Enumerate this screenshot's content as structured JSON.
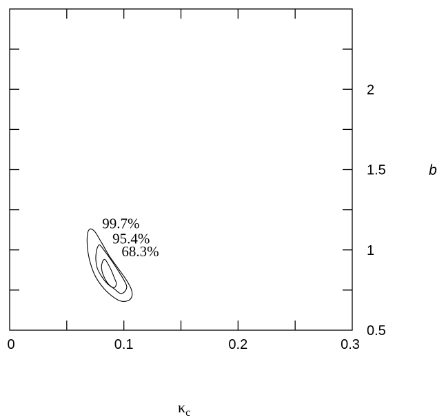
{
  "chart_data": {
    "type": "contour",
    "xlabel": "κ",
    "xlabel_subscript": "c",
    "ylabel": "b",
    "xlim": [
      0,
      0.3
    ],
    "ylim": [
      0.5,
      2.5
    ],
    "x_ticks": [
      {
        "value": 0,
        "label": "0"
      },
      {
        "value": 0.1,
        "label": "0.1"
      },
      {
        "value": 0.2,
        "label": "0.2"
      },
      {
        "value": 0.3,
        "label": "0.3"
      }
    ],
    "x_minor_ticks": [
      0.05,
      0.15,
      0.25
    ],
    "y_ticks": [
      {
        "value": 0.5,
        "label": "0.5"
      },
      {
        "value": 1,
        "label": "1"
      },
      {
        "value": 1.5,
        "label": "1.5"
      },
      {
        "value": 2,
        "label": "2"
      }
    ],
    "y_minor_ticks": [
      0.75,
      1.25,
      1.75,
      2.25
    ],
    "grid": false,
    "contours": [
      {
        "label": "68.3%",
        "label_at": [
          0.098,
          0.96
        ],
        "points": [
          [
            0.0835,
            0.94
          ],
          [
            0.0885,
            0.88
          ],
          [
            0.092,
            0.82
          ],
          [
            0.0935,
            0.79
          ],
          [
            0.0915,
            0.765
          ],
          [
            0.0875,
            0.78
          ],
          [
            0.0835,
            0.82
          ],
          [
            0.0808,
            0.87
          ],
          [
            0.0808,
            0.915
          ]
        ]
      },
      {
        "label": "95.4%",
        "label_at": [
          0.09,
          1.04
        ],
        "points": [
          [
            0.079,
            1.03
          ],
          [
            0.0835,
            0.99
          ],
          [
            0.09,
            0.925
          ],
          [
            0.096,
            0.86
          ],
          [
            0.101,
            0.8
          ],
          [
            0.1025,
            0.765
          ],
          [
            0.1,
            0.735
          ],
          [
            0.0965,
            0.73
          ],
          [
            0.092,
            0.755
          ],
          [
            0.0855,
            0.79
          ],
          [
            0.0805,
            0.835
          ],
          [
            0.0768,
            0.885
          ],
          [
            0.0755,
            0.935
          ],
          [
            0.0758,
            0.985
          ],
          [
            0.0772,
            1.02
          ]
        ]
      },
      {
        "label": "99.7%",
        "label_at": [
          0.081,
          1.135
        ],
        "points": [
          [
            0.0695,
            1.125
          ],
          [
            0.0715,
            1.13
          ],
          [
            0.075,
            1.11
          ],
          [
            0.0805,
            1.045
          ],
          [
            0.087,
            0.965
          ],
          [
            0.094,
            0.895
          ],
          [
            0.1015,
            0.82
          ],
          [
            0.1065,
            0.755
          ],
          [
            0.107,
            0.71
          ],
          [
            0.104,
            0.685
          ],
          [
            0.098,
            0.68
          ],
          [
            0.091,
            0.705
          ],
          [
            0.0825,
            0.76
          ],
          [
            0.0755,
            0.83
          ],
          [
            0.0712,
            0.905
          ],
          [
            0.0685,
            0.99
          ],
          [
            0.0678,
            1.06
          ],
          [
            0.0683,
            1.105
          ]
        ]
      }
    ]
  }
}
